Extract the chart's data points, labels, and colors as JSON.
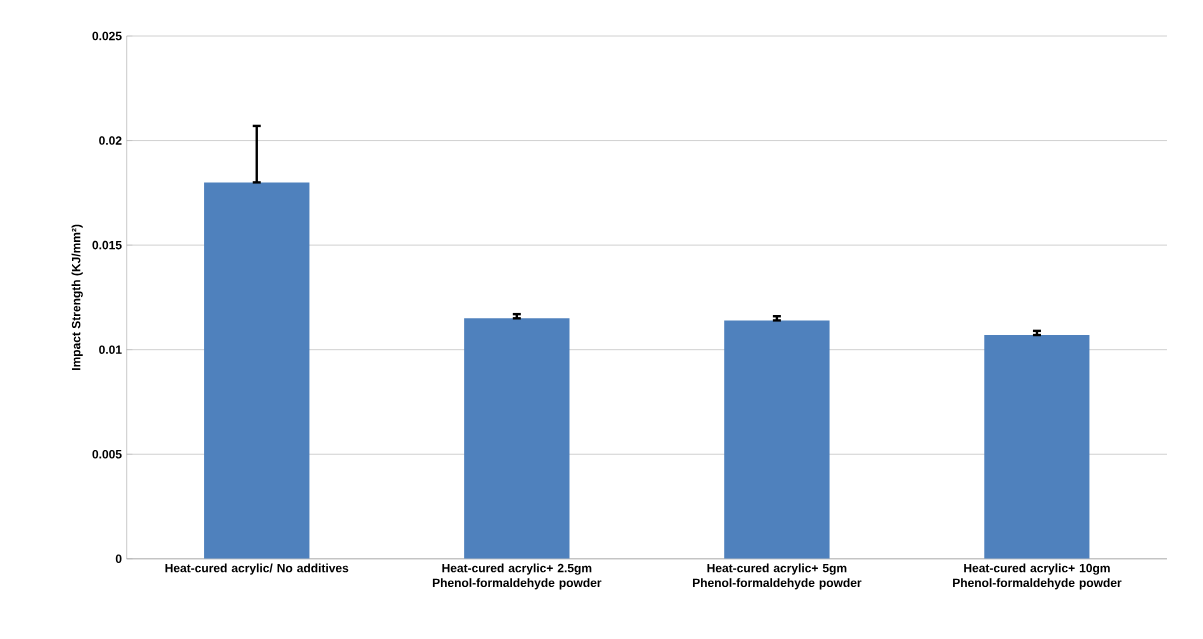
{
  "chart_data": {
    "type": "bar",
    "ylabel": "Impact Strength (KJ/mm²)",
    "categories": [
      "Heat-cured acrylic/  No additives",
      "Heat-cured acrylic+  2.5gm Phenol-formaldehyde powder",
      "Heat-cured acrylic+  5gm Phenol-formaldehyde powder",
      "Heat-cured acrylic+  10gm Phenol-formaldehyde powder"
    ],
    "values": [
      0.018,
      0.0115,
      0.0114,
      0.0107
    ],
    "errors": [
      [
        0.018,
        0.0207
      ],
      [
        0.0115,
        0.0117
      ],
      [
        0.0114,
        0.0116
      ],
      [
        0.0107,
        0.0109
      ]
    ],
    "color": "#4f81bd",
    "ylim": [
      0,
      0.025
    ],
    "yticks": [
      0,
      0.005,
      0.01,
      0.015,
      0.02,
      0.025
    ],
    "grid": "y"
  }
}
